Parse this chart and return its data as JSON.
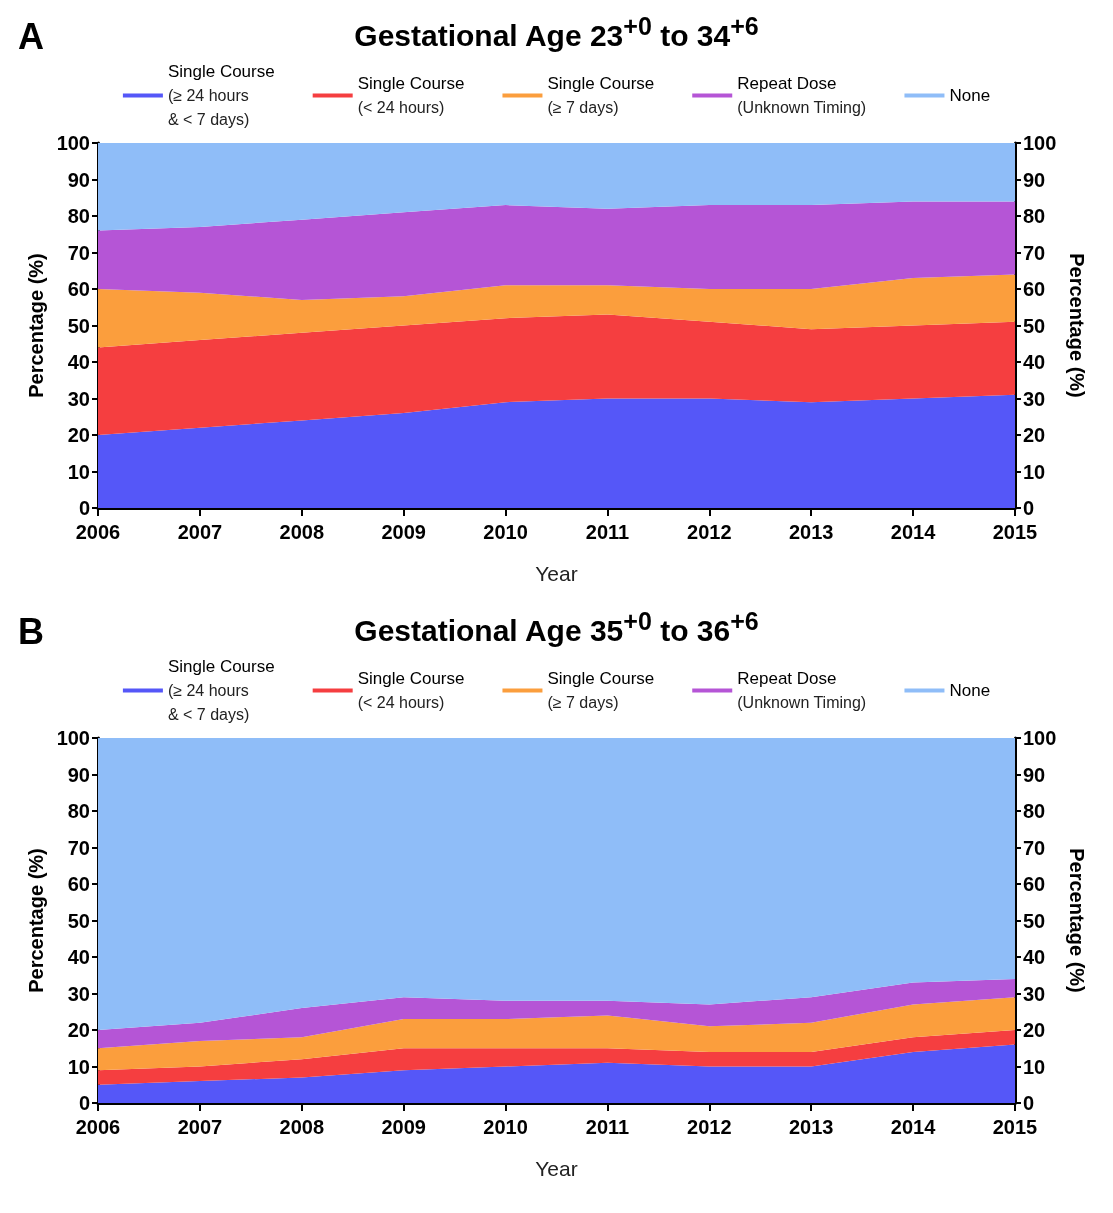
{
  "chart_data": [
    {
      "type": "area",
      "title": "Gestational Age 23$^{+0}$ to 34$^{+6}$",
      "annotations": [
        "A"
      ],
      "xlabel": "Year",
      "ylabel": "Percentage (%)",
      "y2label": "Percentage (%)",
      "stacked": true,
      "legend": "top",
      "categories": [
        "2006",
        "2007",
        "2008",
        "2009",
        "2010",
        "2011",
        "2012",
        "2013",
        "2014",
        "2015"
      ],
      "ylim": [
        0,
        100
      ],
      "yticks": [
        0,
        10,
        20,
        30,
        40,
        50,
        60,
        70,
        80,
        90,
        100
      ],
      "y2lim": [
        0,
        100
      ],
      "y2ticks": [
        0,
        10,
        20,
        30,
        40,
        50,
        60,
        70,
        80,
        90,
        100
      ],
      "series": [
        {
          "name": "Single Course\n(≥ 24 hours\n& < 7 days)",
          "color": "#5557f8",
          "values": [
            20,
            22,
            24,
            26,
            29,
            30,
            30,
            29,
            30,
            31
          ]
        },
        {
          "name": "Single Course\n(< 24 hours)",
          "color": "#f53e40",
          "values": [
            24,
            24,
            24,
            24,
            23,
            23,
            21,
            20,
            20,
            20
          ]
        },
        {
          "name": "Single Course\n(≥ 7 days)",
          "color": "#fb9e3d",
          "values": [
            16,
            13,
            9,
            8,
            9,
            8,
            9,
            11,
            13,
            13
          ]
        },
        {
          "name": "Repeat Dose\n(Unknown Timing)",
          "color": "#b555d6",
          "values": [
            16,
            18,
            22,
            23,
            22,
            21,
            23,
            23,
            21,
            20
          ]
        },
        {
          "name": "None",
          "color": "#8fbdf8",
          "values": [
            24,
            23,
            21,
            19,
            17,
            18,
            17,
            17,
            16,
            16
          ]
        }
      ]
    },
    {
      "type": "area",
      "title": "Gestational Age 35$^{+0}$ to 36$^{+6}$",
      "annotations": [
        "B"
      ],
      "xlabel": "Year",
      "ylabel": "Percentage (%)",
      "y2label": "Percentage (%)",
      "stacked": true,
      "legend": "top",
      "categories": [
        "2006",
        "2007",
        "2008",
        "2009",
        "2010",
        "2011",
        "2012",
        "2013",
        "2014",
        "2015"
      ],
      "ylim": [
        0,
        100
      ],
      "yticks": [
        0,
        10,
        20,
        30,
        40,
        50,
        60,
        70,
        80,
        90,
        100
      ],
      "y2lim": [
        0,
        100
      ],
      "y2ticks": [
        0,
        10,
        20,
        30,
        40,
        50,
        60,
        70,
        80,
        90,
        100
      ],
      "series": [
        {
          "name": "Single Course\n(≥ 24 hours\n& < 7 days)",
          "color": "#5557f8",
          "values": [
            5,
            6,
            7,
            9,
            10,
            11,
            10,
            10,
            14,
            16
          ]
        },
        {
          "name": "Single Course\n(< 24 hours)",
          "color": "#f53e40",
          "values": [
            4,
            4,
            5,
            6,
            5,
            4,
            4,
            4,
            4,
            4
          ]
        },
        {
          "name": "Single Course\n(≥ 7 days)",
          "color": "#fb9e3d",
          "values": [
            6,
            7,
            6,
            8,
            8,
            9,
            7,
            8,
            9,
            9
          ]
        },
        {
          "name": "Repeat Dose\n(Unknown Timing)",
          "color": "#b555d6",
          "values": [
            5,
            5,
            8,
            6,
            5,
            4,
            6,
            7,
            6,
            5
          ]
        },
        {
          "name": "None",
          "color": "#8fbdf8",
          "values": [
            80,
            78,
            74,
            71,
            72,
            72,
            73,
            71,
            67,
            66
          ]
        }
      ]
    }
  ]
}
